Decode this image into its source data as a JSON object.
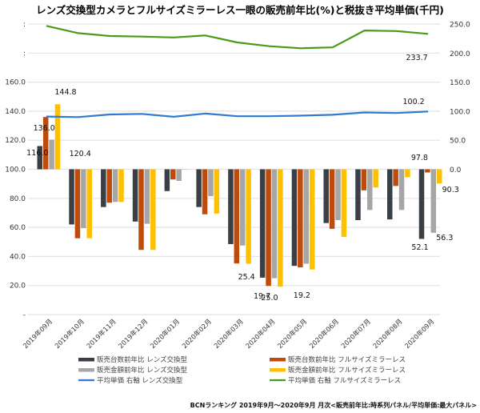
{
  "chart_data": {
    "type": "bar",
    "title": "レンズ交換型カメラとフルサイズミラーレス一眼の販売前年比(%)と税抜き平均単価(千円)",
    "xlabel": "",
    "ylabel": "",
    "ylabel_right": "",
    "categories": [
      "2019年09月",
      "2019年10月",
      "2019年11月",
      "2019年12月",
      "2020年01月",
      "2020年02月",
      "2020年03月",
      "2020年04月",
      "2020年05月",
      "2020年06月",
      "2020年07月",
      "2020年08月",
      "2020年09月"
    ],
    "ylim": [
      0,
      160
    ],
    "baseline": 100,
    "yticks": [
      "-",
      "20.0",
      "40.0",
      "60.0",
      "80.0",
      "100.0",
      "120.0",
      "140.0",
      "160.0",
      "",
      ""
    ],
    "ylim_right": [
      0,
      250
    ],
    "yticks_right": [
      "0.0",
      "50.0",
      "100.0",
      "150.0",
      "200.0",
      "250.0"
    ],
    "grid": true,
    "legend_position": "bottom",
    "series": [
      {
        "name": "販売台数前年比 レンズ交換型",
        "type": "bar",
        "axis": "left",
        "color": "#3a3f45",
        "values": [
          116.0,
          62.0,
          74.0,
          64.0,
          85.0,
          74.0,
          48.5,
          25.4,
          33.5,
          63.0,
          65.0,
          65.5,
          52.1
        ]
      },
      {
        "name": "販売台数前年比 フルサイズミラーレス",
        "type": "bar",
        "axis": "left",
        "color": "#c04a0a",
        "values": [
          136.0,
          52.5,
          77.0,
          44.5,
          93.0,
          69.0,
          35.2,
          19.7,
          32.5,
          59.0,
          85.5,
          88.5,
          97.8
        ]
      },
      {
        "name": "販売金額前年比 レンズ交換型",
        "type": "bar",
        "axis": "left",
        "color": "#a6a6a6",
        "values": [
          120.4,
          59.5,
          77.5,
          62.5,
          92.0,
          81.5,
          47.5,
          25.0,
          35.0,
          65.0,
          72.0,
          72.0,
          56.3
        ]
      },
      {
        "name": "販売金額前年比 フルサイズミラーレス",
        "type": "bar",
        "axis": "left",
        "color": "#ffc000",
        "values": [
          144.8,
          52.5,
          77.5,
          44.5,
          100.0,
          69.5,
          35.0,
          19.2,
          31.0,
          53.5,
          87.5,
          94.5,
          90.3
        ]
      },
      {
        "name": "平均単価 右軸 レンズ交換型",
        "type": "line",
        "axis": "right",
        "color": "#2e7bcf",
        "values": [
          91.5,
          90.5,
          95.0,
          96.0,
          91.0,
          96.5,
          92.0,
          92.0,
          93.0,
          94.5,
          98.5,
          97.5,
          100.2
        ]
      },
      {
        "name": "平均単価 右軸 フルサイズミラーレス",
        "type": "line",
        "axis": "right",
        "color": "#4a9a1a",
        "values": [
          247.5,
          235.0,
          230.0,
          229.0,
          227.5,
          231.0,
          219.0,
          212.5,
          209.0,
          210.5,
          239.5,
          238.5,
          233.7
        ]
      }
    ],
    "data_labels": [
      {
        "series": 0,
        "index": 0,
        "text": "116.0"
      },
      {
        "series": 1,
        "index": 0,
        "text": "136.0"
      },
      {
        "series": 2,
        "index": 0,
        "text": "120.4"
      },
      {
        "series": 3,
        "index": 0,
        "text": "144.8"
      },
      {
        "series": 0,
        "index": 7,
        "text": "25.4"
      },
      {
        "series": 1,
        "index": 7,
        "text": "19.7"
      },
      {
        "series": 2,
        "index": 7,
        "text": "25.0"
      },
      {
        "series": 3,
        "index": 7,
        "text": "19.2"
      },
      {
        "series": 0,
        "index": 12,
        "text": "52.1"
      },
      {
        "series": 1,
        "index": 12,
        "text": "97.8"
      },
      {
        "series": 2,
        "index": 12,
        "text": "56.3"
      },
      {
        "series": 3,
        "index": 12,
        "text": "90.3"
      },
      {
        "series": 4,
        "index": 12,
        "text": "100.2"
      },
      {
        "series": 5,
        "index": 12,
        "text": "233.7"
      }
    ],
    "footer": "BCNランキング 2019年9月～2020年9月 月次<販売前年比:時系列パネル/平均単価:最大パネル>"
  }
}
